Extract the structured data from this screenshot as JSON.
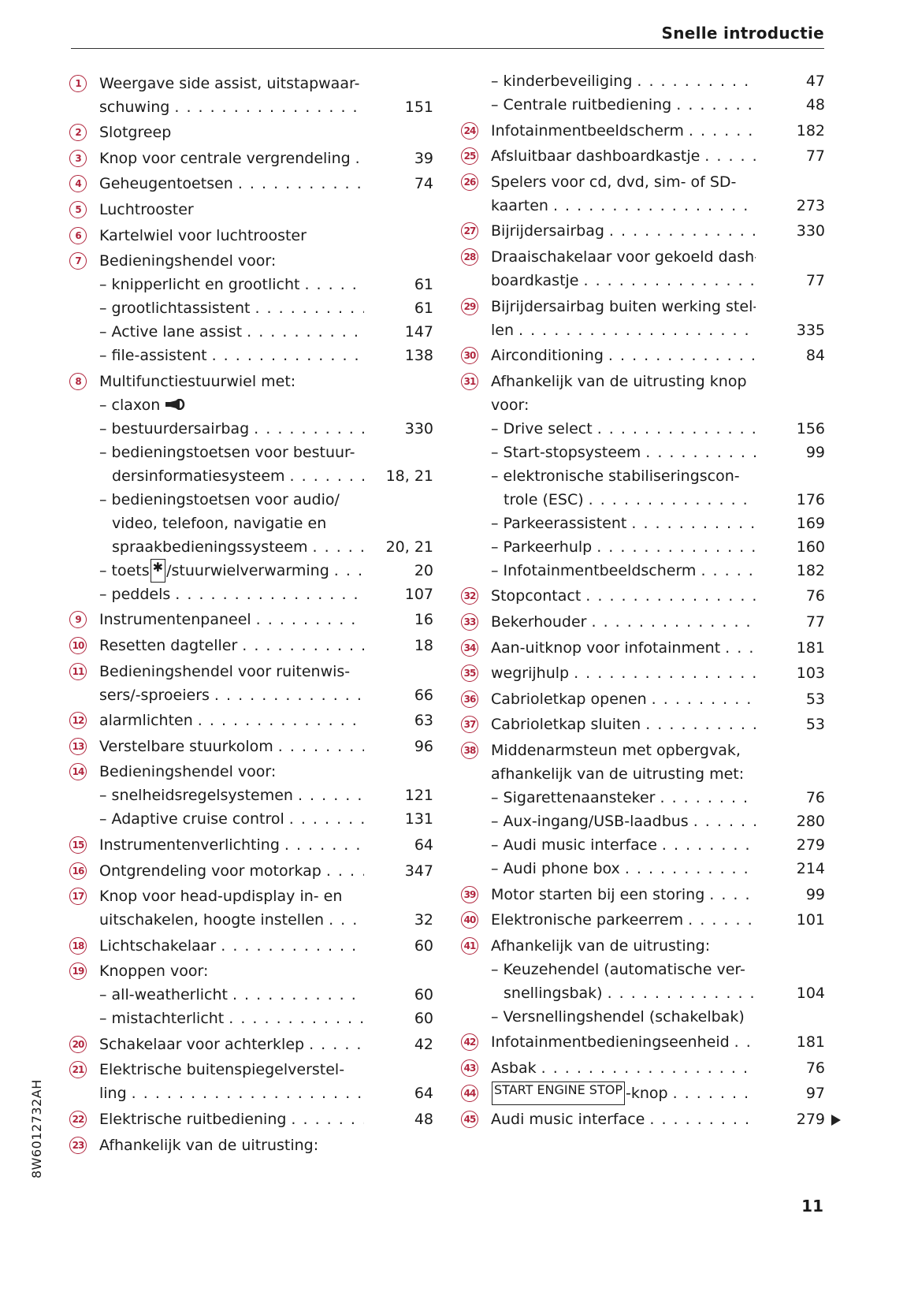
{
  "header": {
    "title": "Snelle introductie"
  },
  "side_code": "8W6012732AH",
  "page_number": "11",
  "accent_color": "#b0243c",
  "left": [
    {
      "n": "1",
      "t": "Weergave side assist, uitstapwaar-"
    },
    {
      "t": "schuwing",
      "p": "151",
      "ind": 1
    },
    {
      "n": "2",
      "t": "Slotgreep",
      "nodots": true
    },
    {
      "n": "3",
      "t": "Knop voor centrale vergrendeling",
      "p": "39"
    },
    {
      "n": "4",
      "t": "Geheugentoetsen",
      "p": "74"
    },
    {
      "n": "5",
      "t": "Luchtrooster",
      "nodots": true
    },
    {
      "n": "6",
      "t": "Kartelwiel voor luchtrooster",
      "nodots": true
    },
    {
      "n": "7",
      "t": "Bedieningshendel voor:",
      "nodots": true
    },
    {
      "t": "– knipperlicht en grootlicht",
      "p": "61",
      "ind": 1
    },
    {
      "t": "– grootlichtassistent",
      "p": "61",
      "ind": 1
    },
    {
      "t": "– Active lane assist",
      "p": "147",
      "ind": 1
    },
    {
      "t": "– file-assistent",
      "p": "138",
      "ind": 1
    },
    {
      "n": "8",
      "t": "Multifunctiestuurwiel met:",
      "nodots": true
    },
    {
      "t": "– claxon",
      "ind": 1,
      "nodots": true,
      "icon": "horn-icon"
    },
    {
      "t": "– bestuurdersairbag",
      "p": "330",
      "ind": 1
    },
    {
      "t": "– bedieningstoetsen voor bestuur-",
      "ind": 1,
      "nodots": true
    },
    {
      "t": "dersinformatiesysteem",
      "p": "18, 21",
      "ind": 2
    },
    {
      "t": "– bedieningstoetsen voor audio/",
      "ind": 1,
      "nodots": true
    },
    {
      "t": "video, telefoon, navigatie en",
      "ind": 2,
      "nodots": true
    },
    {
      "t": "spraakbedieningssysteem",
      "p": "20, 21",
      "ind": 2
    },
    {
      "t": "– toets ",
      "box": "✱",
      "post": "/stuurwielverwarming",
      "p": "20",
      "ind": 1
    },
    {
      "t": "– peddels",
      "p": "107",
      "ind": 1
    },
    {
      "n": "9",
      "t": "Instrumentenpaneel",
      "p": "16"
    },
    {
      "n": "10",
      "t": "Resetten dagteller",
      "p": "18"
    },
    {
      "n": "11",
      "t": "Bedieningshendel voor ruitenwis-",
      "nodots": true
    },
    {
      "t": "sers/-sproeiers",
      "p": "66",
      "ind": 1
    },
    {
      "n": "12",
      "t": "alarmlichten",
      "p": "63"
    },
    {
      "n": "13",
      "t": "Verstelbare stuurkolom",
      "p": "96"
    },
    {
      "n": "14",
      "t": "Bedieningshendel voor:",
      "nodots": true
    },
    {
      "t": "– snelheidsregelsystemen",
      "p": "121",
      "ind": 1
    },
    {
      "t": "– Adaptive cruise control",
      "p": "131",
      "ind": 1
    },
    {
      "n": "15",
      "t": "Instrumentenverlichting",
      "p": "64"
    },
    {
      "n": "16",
      "t": "Ontgrendeling voor motorkap",
      "p": "347"
    },
    {
      "n": "17",
      "t": "Knop voor head-updisplay in- en",
      "nodots": true
    },
    {
      "t": "uitschakelen, hoogte instellen",
      "p": "32",
      "ind": 1
    },
    {
      "n": "18",
      "t": "Lichtschakelaar",
      "p": "60"
    },
    {
      "n": "19",
      "t": "Knoppen voor:",
      "nodots": true
    },
    {
      "t": "– all-weatherlicht",
      "p": "60",
      "ind": 1
    },
    {
      "t": "– mistachterlicht",
      "p": "60",
      "ind": 1
    },
    {
      "n": "20",
      "t": "Schakelaar voor achterklep",
      "p": "42"
    },
    {
      "n": "21",
      "t": "Elektrische buitenspiegelverstel-",
      "nodots": true
    },
    {
      "t": "ling",
      "p": "64",
      "ind": 1
    },
    {
      "n": "22",
      "t": "Elektrische ruitbediening",
      "p": "48"
    },
    {
      "n": "23",
      "t": "Afhankelijk van de uitrusting:",
      "nodots": true
    }
  ],
  "right": [
    {
      "t": "– kinderbeveiliging",
      "p": "47",
      "ind": 1
    },
    {
      "t": "– Centrale ruitbediening",
      "p": "48",
      "ind": 1
    },
    {
      "n": "24",
      "t": "Infotainmentbeeldscherm",
      "p": "182"
    },
    {
      "n": "25",
      "t": "Afsluitbaar dashboardkastje",
      "p": "77"
    },
    {
      "n": "26",
      "t": "Spelers voor cd, dvd, sim- of SD-",
      "nodots": true
    },
    {
      "t": "kaarten",
      "p": "273",
      "ind": 1
    },
    {
      "n": "27",
      "t": "Bijrijdersairbag",
      "p": "330"
    },
    {
      "n": "28",
      "t": "Draaischakelaar voor gekoeld dash-",
      "nodots": true
    },
    {
      "t": "boardkastje",
      "p": "77",
      "ind": 1
    },
    {
      "n": "29",
      "t": "Bijrijdersairbag buiten werking stel-",
      "nodots": true
    },
    {
      "t": "len",
      "p": "335",
      "ind": 1
    },
    {
      "n": "30",
      "t": "Airconditioning",
      "p": "84"
    },
    {
      "n": "31",
      "t": "Afhankelijk van de uitrusting knop",
      "nodots": true
    },
    {
      "t": "voor:",
      "ind": 1,
      "nodots": true
    },
    {
      "t": "– Drive select",
      "p": "156",
      "ind": 1
    },
    {
      "t": "– Start-stopsysteem",
      "p": "99",
      "ind": 1
    },
    {
      "t": "– elektronische stabiliseringscon-",
      "ind": 1,
      "nodots": true
    },
    {
      "t": "trole (ESC)",
      "p": "176",
      "ind": 2
    },
    {
      "t": "– Parkeerassistent",
      "p": "169",
      "ind": 1
    },
    {
      "t": "– Parkeerhulp",
      "p": "160",
      "ind": 1
    },
    {
      "t": "– Infotainmentbeeldscherm",
      "p": "182",
      "ind": 1
    },
    {
      "n": "32",
      "t": "Stopcontact",
      "p": "76"
    },
    {
      "n": "33",
      "t": "Bekerhouder",
      "p": "77"
    },
    {
      "n": "34",
      "t": "Aan-uitknop voor infotainment",
      "p": "181"
    },
    {
      "n": "35",
      "t": "wegrijhulp",
      "p": "103"
    },
    {
      "n": "36",
      "t": "Cabriolet­kap openen",
      "p": "53"
    },
    {
      "n": "37",
      "t": "Cabrioletkap sluiten",
      "p": "53"
    },
    {
      "n": "38",
      "t": "Middenarmsteun met opbergvak,",
      "nodots": true
    },
    {
      "t": "afhankelijk van de uitrusting met:",
      "ind": 1,
      "nodots": true
    },
    {
      "t": "– Sigarettenaansteker",
      "p": "76",
      "ind": 1
    },
    {
      "t": "– Aux-ingang/USB-laadbus",
      "p": "280",
      "ind": 1
    },
    {
      "t": "– Audi music interface",
      "p": "279",
      "ind": 1
    },
    {
      "t": "– Audi phone box",
      "p": "214",
      "ind": 1
    },
    {
      "n": "39",
      "t": "Motor starten bij een storing",
      "p": "99"
    },
    {
      "n": "40",
      "t": "Elektronische parkeerrem",
      "p": "101"
    },
    {
      "n": "41",
      "t": "Afhankelijk van de uitrusting:",
      "nodots": true
    },
    {
      "t": "– Keuzehendel (automatische ver-",
      "ind": 1,
      "nodots": true
    },
    {
      "t": "snellingsbak)",
      "p": "104",
      "ind": 2
    },
    {
      "t": "– Versnellingshendel (schakelbak)",
      "ind": 1,
      "nodots": true
    },
    {
      "n": "42",
      "t": "Infotainmentbedieningseenheid",
      "p": "181"
    },
    {
      "n": "43",
      "t": "Asbak",
      "p": "76"
    },
    {
      "n": "44",
      "t": "",
      "box": "START ENGINE STOP",
      "post": "-knop",
      "p": "97"
    },
    {
      "n": "45",
      "t": "Audi music interface",
      "p": "279",
      "continue_arrow": true
    }
  ]
}
